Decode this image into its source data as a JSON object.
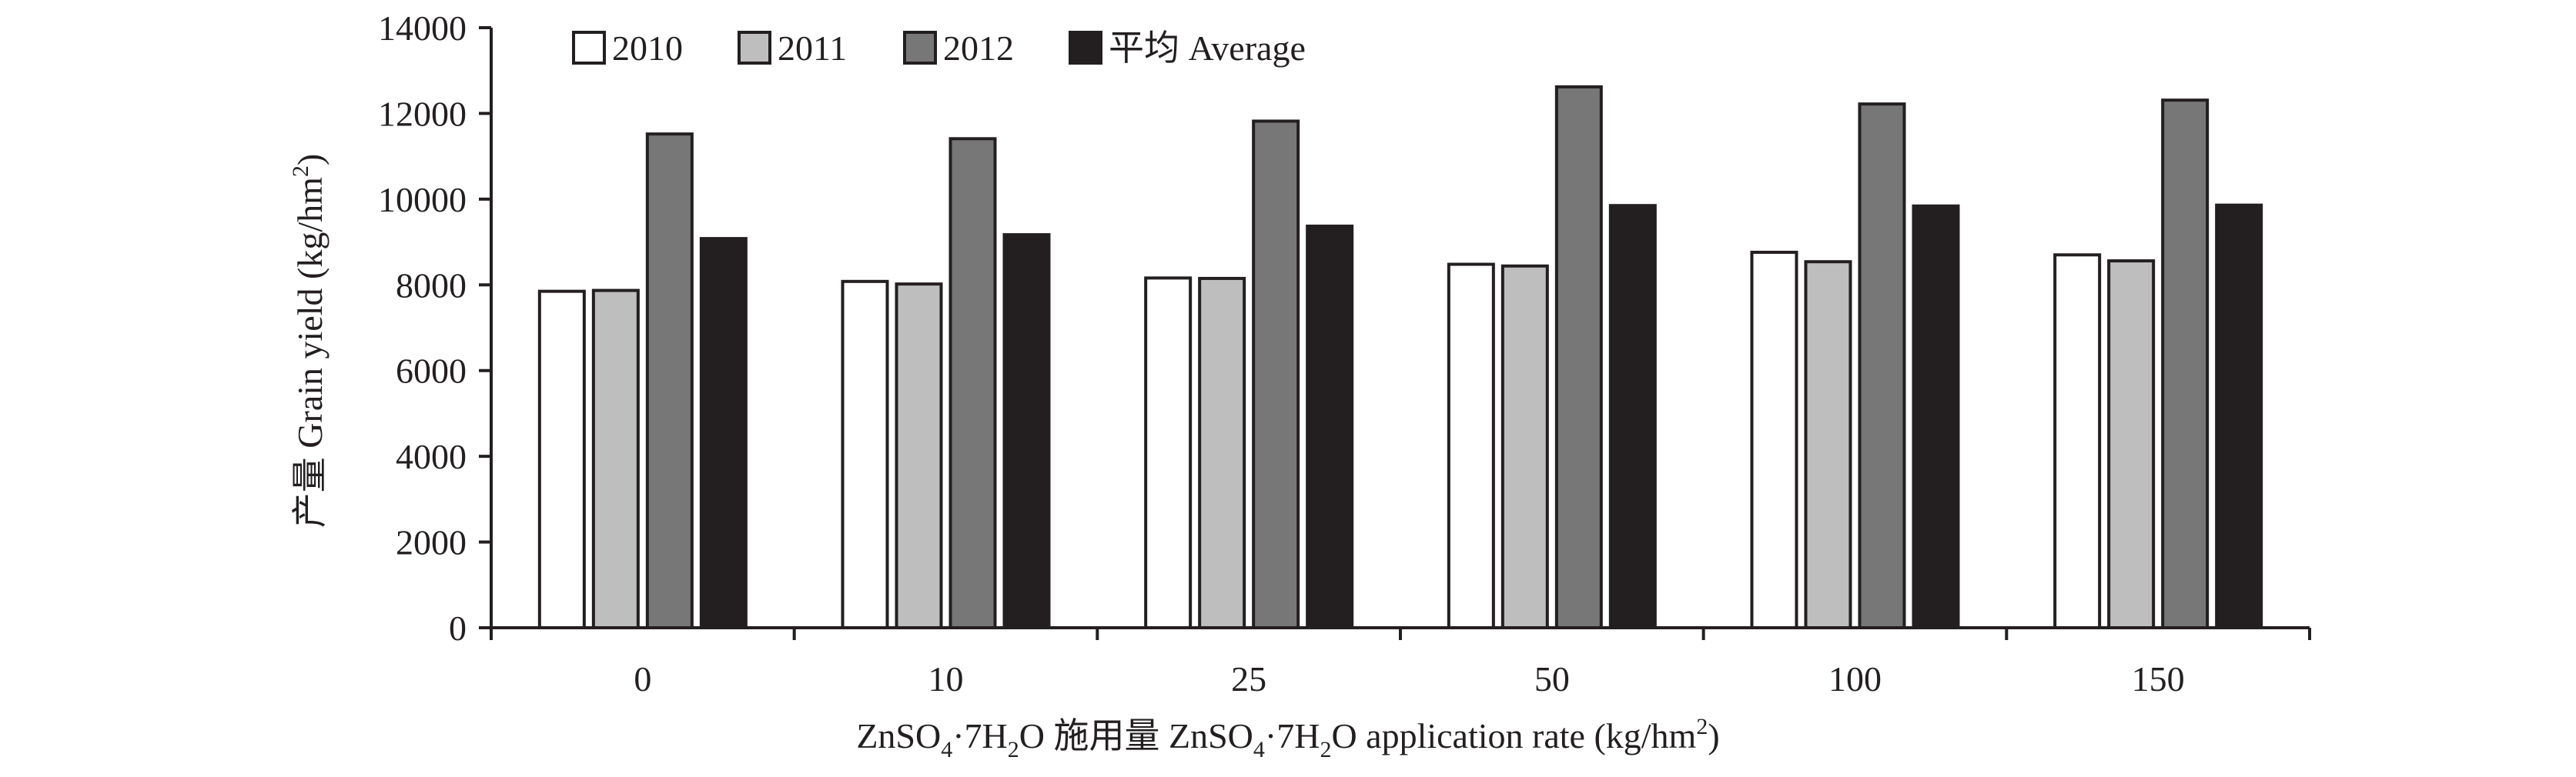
{
  "chart_data": {
    "type": "bar",
    "categories": [
      "0",
      "10",
      "25",
      "50",
      "100",
      "150"
    ],
    "series": [
      {
        "name": "2010",
        "color": "#ffffff",
        "values": [
          7850,
          8080,
          8160,
          8480,
          8760,
          8700
        ]
      },
      {
        "name": "2011",
        "color": "#bebebe",
        "values": [
          7870,
          8020,
          8150,
          8440,
          8540,
          8560
        ]
      },
      {
        "name": "2012",
        "color": "#777777",
        "values": [
          11520,
          11410,
          11820,
          12620,
          12220,
          12310
        ]
      },
      {
        "name": "平均 Average",
        "color": "#231f20",
        "values": [
          9080,
          9170,
          9370,
          9850,
          9840,
          9860
        ]
      }
    ],
    "xlabel_parts": {
      "a": "ZnSO",
      "a_sub": "4",
      "b": "·7H",
      "b_sub": "2",
      "c": "O 施用量 ZnSO",
      "c_sub": "4",
      "d": "·7H",
      "d_sub": "2",
      "e": "O application rate (kg/hm",
      "e_sup": "2",
      "f": ")"
    },
    "ylabel_parts": {
      "a": "产量 Grain yield (kg/hm",
      "a_sup": "2",
      "b": ")"
    },
    "ylim": [
      0,
      14000
    ],
    "yticks": [
      0,
      2000,
      4000,
      6000,
      8000,
      10000,
      12000,
      14000
    ],
    "grid": false,
    "legend_position": "top-left"
  }
}
